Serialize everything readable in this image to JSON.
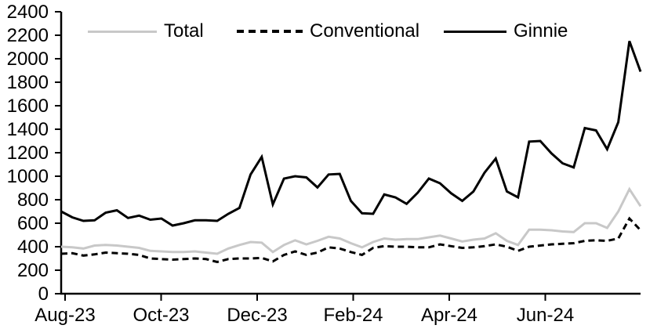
{
  "chart_data": {
    "type": "line",
    "title": "",
    "xlabel": "",
    "ylabel": "",
    "x_unit": "weekly observations, Aug-2023 through Aug-2024",
    "x_tick_labels": [
      "Aug-23",
      "Oct-23",
      "Dec-23",
      "Feb-24",
      "Apr-24",
      "Jun-24"
    ],
    "y_ticks": [
      0,
      200,
      400,
      600,
      800,
      1000,
      1200,
      1400,
      1600,
      1800,
      2000,
      2200,
      2400
    ],
    "ylim": [
      0,
      2400
    ],
    "grid": "off",
    "legend_position": "top",
    "colors": {
      "total": "#c8c8c8",
      "conventional": "#000000",
      "ginnie": "#000000",
      "axis": "#000000",
      "background": "#ffffff"
    },
    "series": [
      {
        "name": "Total",
        "style": "solid",
        "color": "#c8c8c8",
        "values": [
          400,
          395,
          385,
          410,
          415,
          410,
          400,
          390,
          365,
          360,
          355,
          355,
          360,
          350,
          340,
          385,
          415,
          440,
          435,
          355,
          415,
          455,
          420,
          450,
          485,
          470,
          430,
          395,
          440,
          470,
          460,
          465,
          465,
          480,
          495,
          470,
          445,
          460,
          470,
          515,
          450,
          415,
          545,
          545,
          540,
          530,
          525,
          600,
          600,
          560,
          700,
          890,
          745
        ]
      },
      {
        "name": "Conventional",
        "style": "dashed",
        "color": "#000000",
        "values": [
          340,
          345,
          325,
          335,
          350,
          345,
          340,
          330,
          300,
          295,
          290,
          295,
          300,
          295,
          270,
          295,
          300,
          300,
          305,
          275,
          330,
          360,
          330,
          350,
          395,
          385,
          355,
          330,
          390,
          405,
          400,
          400,
          395,
          395,
          420,
          405,
          390,
          395,
          405,
          420,
          400,
          365,
          400,
          410,
          420,
          425,
          430,
          450,
          455,
          450,
          470,
          640,
          540
        ]
      },
      {
        "name": "Ginnie",
        "style": "solid",
        "color": "#000000",
        "values": [
          700,
          650,
          620,
          625,
          690,
          710,
          645,
          665,
          630,
          640,
          580,
          600,
          625,
          625,
          620,
          680,
          730,
          1015,
          1165,
          760,
          980,
          1000,
          990,
          905,
          1015,
          1020,
          790,
          685,
          680,
          845,
          820,
          765,
          860,
          980,
          940,
          855,
          790,
          870,
          1030,
          1150,
          870,
          820,
          1295,
          1300,
          1195,
          1110,
          1075,
          1410,
          1390,
          1230,
          1460,
          2150,
          1890
        ]
      }
    ]
  }
}
